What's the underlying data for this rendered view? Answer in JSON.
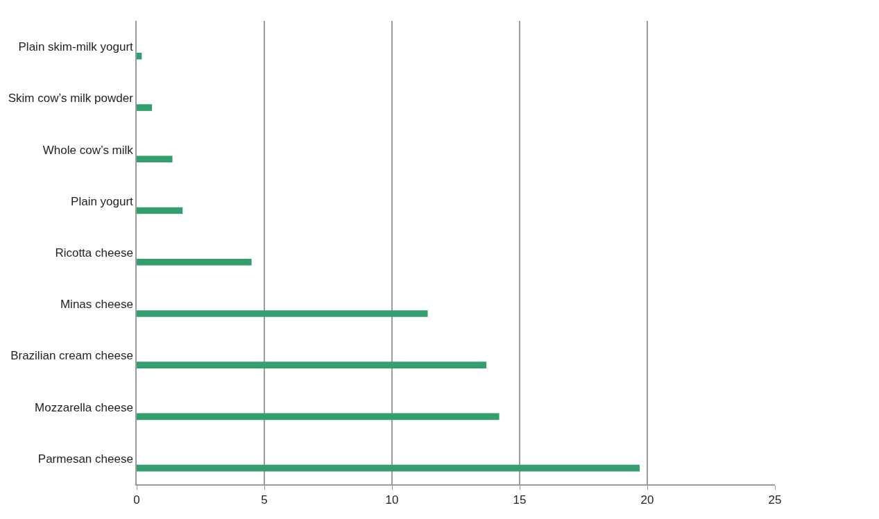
{
  "chart_data": {
    "type": "bar",
    "orientation": "horizontal",
    "categories": [
      "Plain skim-milk yogurt",
      "Skim cow’s milk powder",
      "Whole cow’s milk",
      "Plain yogurt",
      "Ricotta cheese",
      "Minas cheese",
      "Brazilian cream cheese",
      "Mozzarella cheese",
      "Parmesan cheese"
    ],
    "values": [
      0.2,
      0.6,
      1.4,
      1.8,
      4.5,
      11.4,
      13.7,
      14.2,
      19.7
    ],
    "color": "#339e6e",
    "xlim": [
      0,
      25
    ],
    "xticks": [
      0,
      5,
      10,
      15,
      20,
      25
    ],
    "grid": "x"
  }
}
